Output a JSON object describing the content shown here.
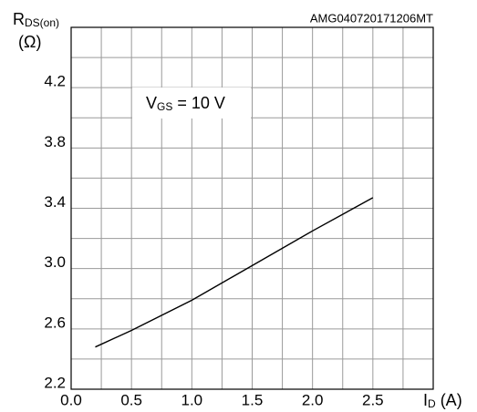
{
  "chart_data": {
    "type": "line",
    "watermark": "AMG040720171206MT",
    "y_label": {
      "main": "R",
      "sub": "DS(on)",
      "unit": "(Ω)"
    },
    "x_label": {
      "main": "I",
      "sub": "D",
      "unit": " (A)"
    },
    "annotation": {
      "main": "V",
      "sub": "GS",
      "rest": " = 10 V"
    },
    "x": [
      0.2,
      0.5,
      1.0,
      1.5,
      2.0,
      2.5
    ],
    "series": [
      {
        "color": "#000000",
        "values": [
          2.48,
          2.59,
          2.79,
          3.02,
          3.25,
          3.47
        ]
      }
    ],
    "xlim": [
      0,
      3
    ],
    "ylim": [
      2.2,
      4.6
    ],
    "xticks": [
      {
        "value": 0,
        "label": "0.0"
      },
      0.5,
      {
        "value": 1,
        "label": "1.0"
      },
      1.5,
      {
        "value": 2,
        "label": "2.0"
      },
      2.5
    ],
    "yticks": [
      2.2,
      2.6,
      {
        "value": 3,
        "label": "3.0"
      },
      3.4,
      3.8,
      4.2
    ],
    "x_minor_grid": [
      0.25,
      0.75,
      1.25,
      1.75,
      2.25,
      2.75,
      3
    ],
    "y_minor_grid": [
      2.4,
      2.8,
      3.2,
      3.6,
      4.0,
      4.4,
      4.6
    ],
    "grid": true
  }
}
